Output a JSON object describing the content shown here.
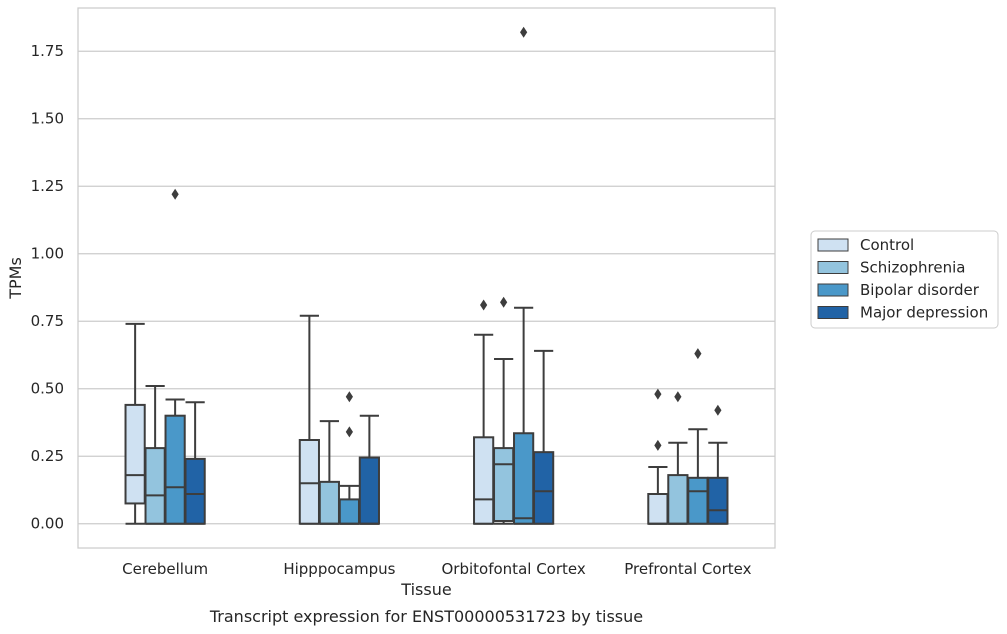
{
  "chart_data": {
    "type": "box",
    "caption": "Transcript expression for ENST00000531723 by tissue",
    "xlabel": "Tissue",
    "ylabel": "TPMs",
    "ylim": [
      -0.09,
      1.91
    ],
    "yticks": [
      "0.00",
      "0.25",
      "0.50",
      "0.75",
      "1.00",
      "1.25",
      "1.50",
      "1.75"
    ],
    "grid": "horizontal",
    "legend_position": "right",
    "categories": [
      "Cerebellum",
      "Hipppocampus",
      "Orbitofontal Cortex",
      "Prefrontal Cortex"
    ],
    "series": [
      {
        "name": "Control",
        "color": "#cfe1f2",
        "boxes": [
          {
            "whisker_low": 0.0,
            "q1": 0.075,
            "median": 0.18,
            "q3": 0.44,
            "whisker_high": 0.74,
            "outliers": []
          },
          {
            "whisker_low": 0.0,
            "q1": 0.0,
            "median": 0.15,
            "q3": 0.31,
            "whisker_high": 0.77,
            "outliers": []
          },
          {
            "whisker_low": 0.0,
            "q1": 0.0,
            "median": 0.09,
            "q3": 0.32,
            "whisker_high": 0.7,
            "outliers": [
              0.81
            ]
          },
          {
            "whisker_low": 0.0,
            "q1": 0.0,
            "median": 0.0,
            "q3": 0.11,
            "whisker_high": 0.21,
            "outliers": [
              0.29,
              0.48
            ]
          }
        ]
      },
      {
        "name": "Schizophrenia",
        "color": "#93c4de",
        "boxes": [
          {
            "whisker_low": 0.0,
            "q1": 0.0,
            "median": 0.105,
            "q3": 0.28,
            "whisker_high": 0.51,
            "outliers": []
          },
          {
            "whisker_low": 0.0,
            "q1": 0.0,
            "median": 0.0,
            "q3": 0.155,
            "whisker_high": 0.38,
            "outliers": []
          },
          {
            "whisker_low": 0.0,
            "q1": 0.01,
            "median": 0.22,
            "q3": 0.28,
            "whisker_high": 0.61,
            "outliers": [
              0.82
            ]
          },
          {
            "whisker_low": 0.0,
            "q1": 0.0,
            "median": 0.0,
            "q3": 0.18,
            "whisker_high": 0.3,
            "outliers": [
              0.47
            ]
          }
        ]
      },
      {
        "name": "Bipolar disorder",
        "color": "#4a98c9",
        "boxes": [
          {
            "whisker_low": 0.0,
            "q1": 0.0,
            "median": 0.135,
            "q3": 0.4,
            "whisker_high": 0.46,
            "outliers": [
              1.22
            ]
          },
          {
            "whisker_low": 0.0,
            "q1": 0.0,
            "median": 0.0,
            "q3": 0.09,
            "whisker_high": 0.14,
            "outliers": [
              0.34,
              0.47
            ]
          },
          {
            "whisker_low": 0.0,
            "q1": 0.0,
            "median": 0.02,
            "q3": 0.335,
            "whisker_high": 0.8,
            "outliers": [
              1.82
            ]
          },
          {
            "whisker_low": 0.0,
            "q1": 0.0,
            "median": 0.12,
            "q3": 0.17,
            "whisker_high": 0.35,
            "outliers": [
              0.63
            ]
          }
        ]
      },
      {
        "name": "Major depression",
        "color": "#2163a6",
        "boxes": [
          {
            "whisker_low": 0.0,
            "q1": 0.0,
            "median": 0.11,
            "q3": 0.24,
            "whisker_high": 0.45,
            "outliers": []
          },
          {
            "whisker_low": 0.0,
            "q1": 0.0,
            "median": 0.0,
            "q3": 0.245,
            "whisker_high": 0.4,
            "outliers": []
          },
          {
            "whisker_low": 0.0,
            "q1": 0.0,
            "median": 0.12,
            "q3": 0.265,
            "whisker_high": 0.64,
            "outliers": []
          },
          {
            "whisker_low": 0.0,
            "q1": 0.0,
            "median": 0.05,
            "q3": 0.17,
            "whisker_high": 0.3,
            "outliers": [
              0.42
            ]
          }
        ]
      }
    ]
  }
}
